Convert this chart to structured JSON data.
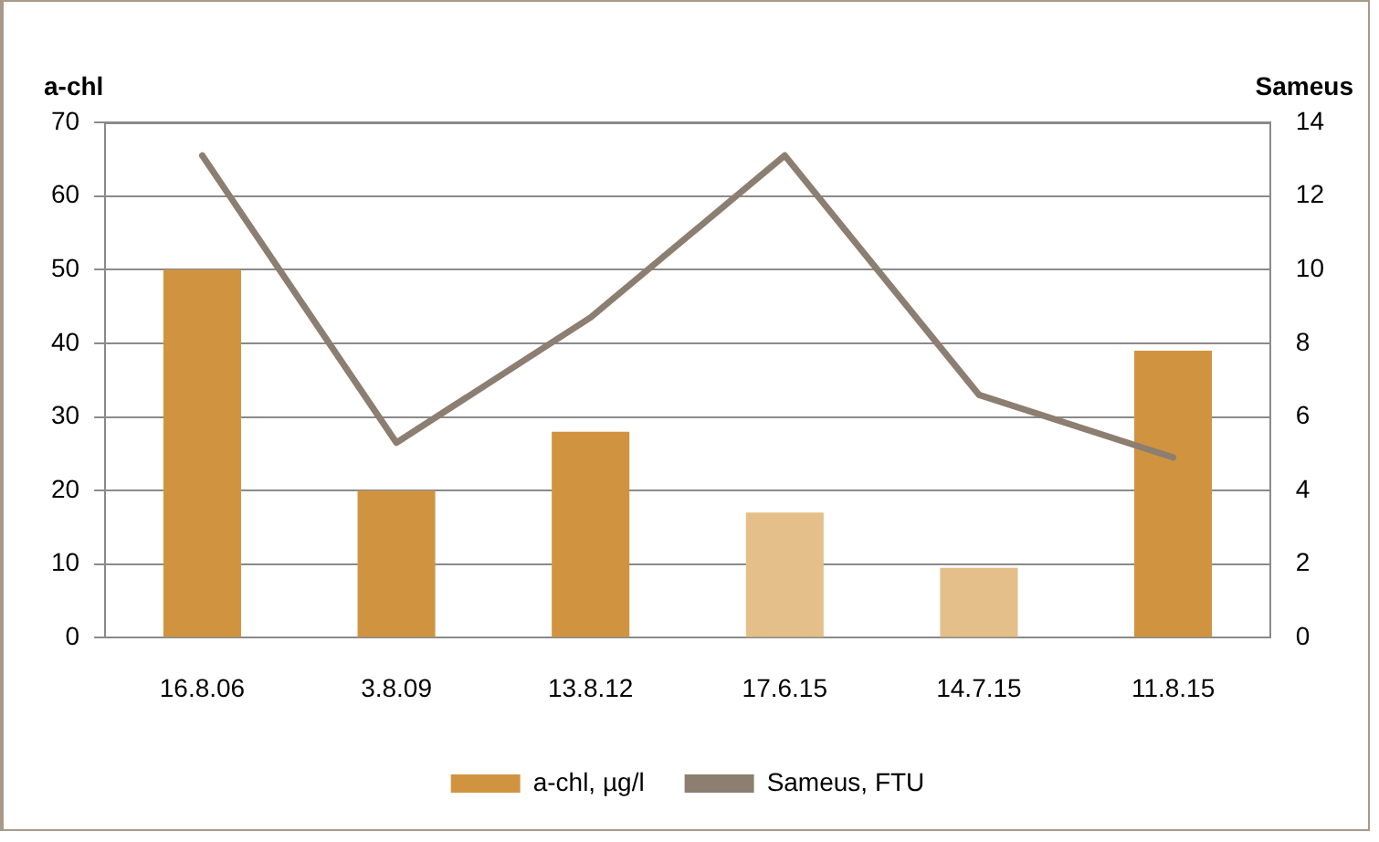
{
  "chart_data": {
    "type": "bar",
    "ylabel": "a-chl",
    "y2label": "Sameus",
    "categories": [
      "16.8.06",
      "3.8.09",
      "13.8.12",
      "17.6.15",
      "14.7.15",
      "11.8.15"
    ],
    "series": [
      {
        "name": "a-chl, µg/l",
        "color": "#d09440",
        "colors": [
          "#d09440",
          "#d09440",
          "#d09440",
          "#e4bf89",
          "#e4bf89",
          "#d09440"
        ],
        "values": [
          50,
          20,
          28,
          17,
          9.5,
          39
        ]
      },
      {
        "name": "Sameus, FTU",
        "type": "line",
        "axis": "y2",
        "color": "#8c7e70",
        "values": [
          13.1,
          5.3,
          8.7,
          13.1,
          6.6,
          4.9
        ]
      }
    ],
    "ylim": [
      0,
      70
    ],
    "yticks": [
      0,
      10,
      20,
      30,
      40,
      50,
      60,
      70
    ],
    "y2lim": [
      0,
      14
    ],
    "y2ticks": [
      0,
      2,
      4,
      6,
      8,
      10,
      12,
      14
    ],
    "grid": "y",
    "legend": "bottom",
    "marker": "none",
    "line_style": "solid"
  }
}
